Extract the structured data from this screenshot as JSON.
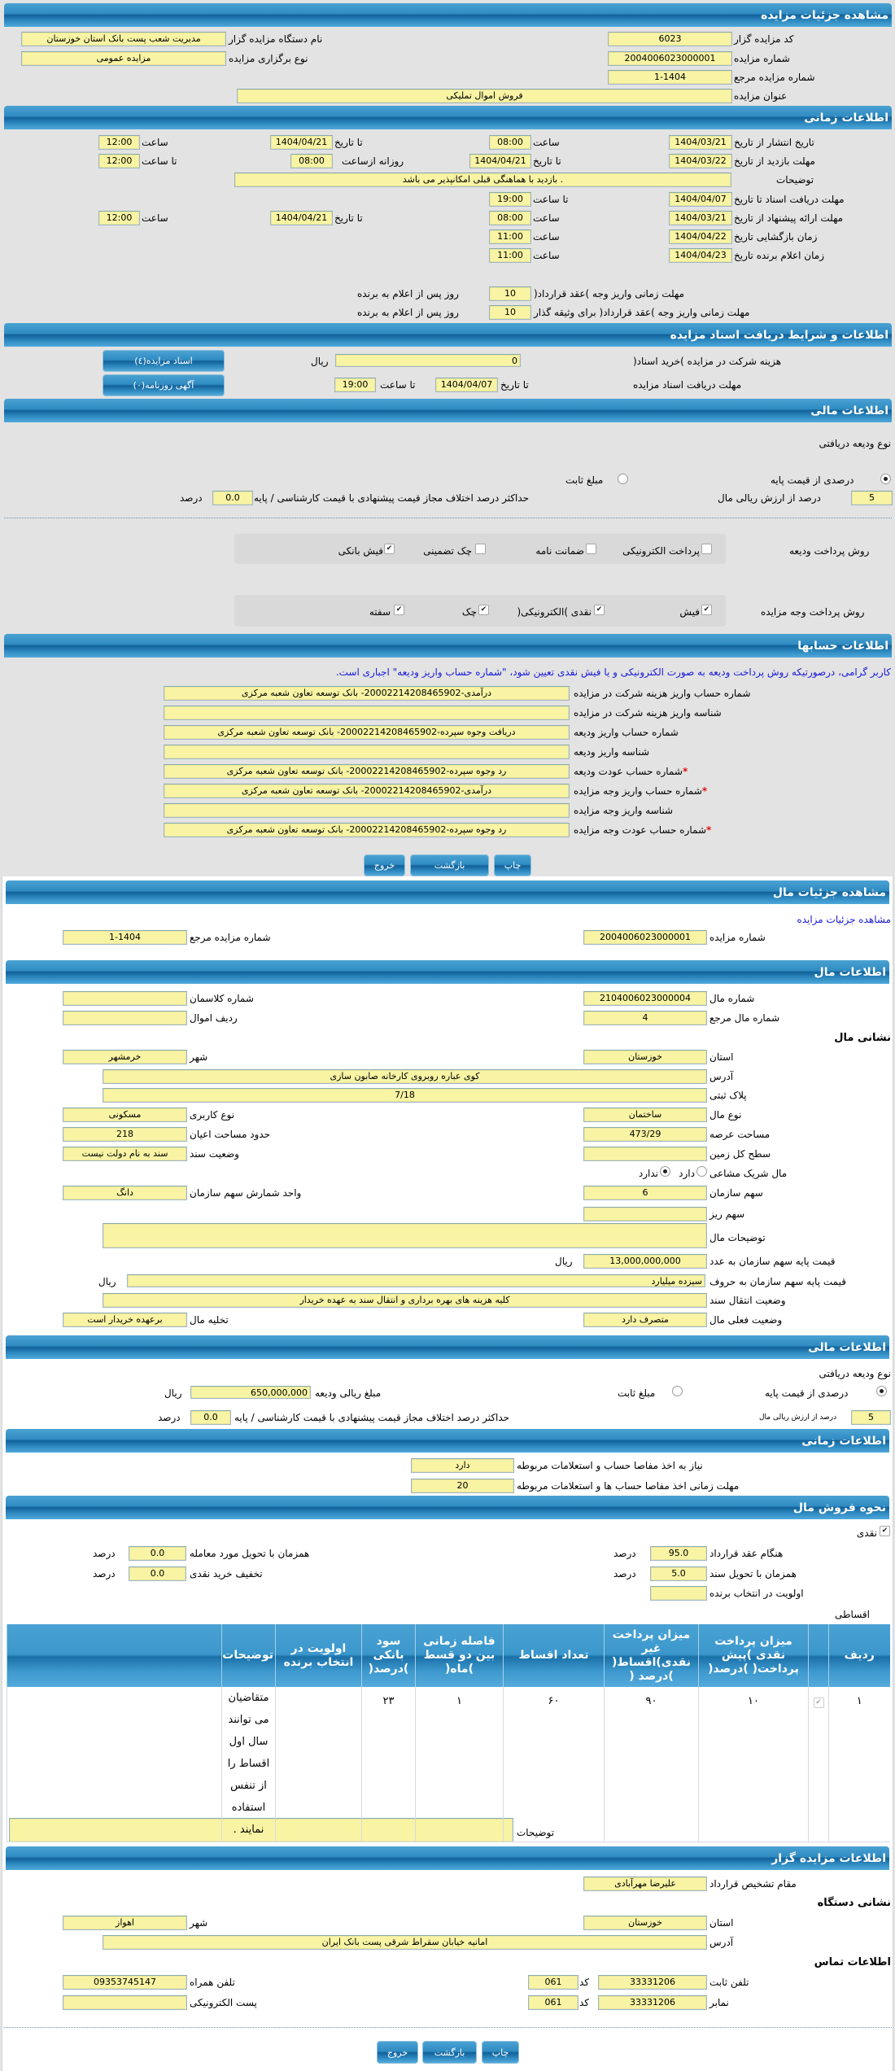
{
  "colors": {
    "header_blue": "#2f8bc1",
    "field_yellow": "#f8f4a4",
    "link_blue": "#1a1ad8",
    "required_red": "#e01010"
  },
  "s1": {
    "title": "مشاهده جزئیات مزایده",
    "code_label": "کد مزایده گزار",
    "code": "6023",
    "org_label": "نام دستگاه مزایده گزار",
    "org": "مدیریت شعب پست بانک استان خوزستان",
    "num_label": "شماره مزایده",
    "num": "2004006023000001",
    "type_label": "نوع برگزاری مزایده",
    "type": "مزایده عمومی",
    "ref_label": "شماره مزایده مرجع",
    "ref": "1-1404",
    "subj_label": "عنوان مزایده",
    "subj": "فروش اموال تملیکی"
  },
  "s2": {
    "title": "اطلاعات زمانی",
    "time": "ساعت",
    "to_date": "تا تاریخ",
    "to_time": "تا ساعت",
    "daily_from": "روزانه ازساعت",
    "desc_label": "توضیحات",
    "desc": ". بازدید با هماهنگی قبلی امکانپذیر می باشد",
    "days_suffix": "روز پس از اعلام به برنده",
    "publish": {
      "label": "تاریخ انتشار  از تاریخ",
      "from_date": "1404/03/21",
      "from_time": "08:00",
      "to_date": "1404/04/21",
      "to_time": "12:00"
    },
    "visit": {
      "label": "مهلت بازدید  از تاریخ",
      "from_date": "1404/03/22",
      "to_date": "1404/04/21",
      "daily_from": "08:00",
      "daily_to": "12:00"
    },
    "docs": {
      "label": "مهلت دریافت اسناد  تا تاریخ",
      "date": "1404/04/07",
      "time": "19:00"
    },
    "offer": {
      "label": "مهلت ارائه پیشنهاد  از تاریخ",
      "from_date": "1404/03/21",
      "from_time": "08:00",
      "to_date": "1404/04/21",
      "to_time": "12:00"
    },
    "opening": {
      "label": "زمان بازگشایی   تاریخ",
      "date": "1404/04/22",
      "time": "11:00"
    },
    "winner": {
      "label": "زمان اعلام برنده   تاریخ",
      "date": "1404/04/23",
      "time": "11:00"
    },
    "pay1": {
      "label": "مهلت زمانی واریز وجه )عقد قرارداد(",
      "days": "10"
    },
    "pay2": {
      "label": "مهلت زمانی واریز وجه )عقد قرارداد( برای وثیقه گذار",
      "days": "10"
    }
  },
  "s3": {
    "title": "اطلاعات و شرایط دریافت اسناد مزایده",
    "fee_label": "هزینه شرکت در مزایده )خرید اسناد(",
    "fee": "0",
    "rial": "ریال",
    "docs_btn": "اسناد مزایده(٤)",
    "deadline_label": "مهلت دریافت اسناد مزایده",
    "to_date_label": "تا تاریخ",
    "date": "1404/04/07",
    "to_time_label": "تا ساعت",
    "time": "19:00",
    "news_btn": "آگهی روزنامه(۰)"
  },
  "s4": {
    "title": "اطلاعات مالی",
    "deposit_type_label": "نوع ودیعه دریافتی",
    "opt_percent": "درصدی از قیمت پایه",
    "opt_percent_selected": true,
    "opt_fixed": "مبلغ ثابت",
    "opt_fixed_selected": false,
    "percent": "5",
    "percent_label": "درصد از ارزش ریالی مال",
    "max_diff_label": "حداکثر درصد اختلاف مجاز قیمت پیشنهادی با قیمت کارشناسی / پایه",
    "max_diff": "0.0",
    "percent_unit": "درصد",
    "deposit_methods_label": "روش پرداخت ودیعه",
    "deposit_methods": [
      {
        "label": "پرداخت الکترونیکی",
        "checked": false
      },
      {
        "label": "ضمانت نامه",
        "checked": false
      },
      {
        "label": "چک تضمینی",
        "checked": false
      },
      {
        "label": "فیش بانکی",
        "checked": true
      }
    ],
    "payment_methods_label": "روش پرداخت وجه مزایده",
    "payment_methods": [
      {
        "label": "فیش",
        "checked": true
      },
      {
        "label": "نقدی )الکترونیکی(",
        "checked": true
      },
      {
        "label": "چک",
        "checked": true
      },
      {
        "label": "سفته",
        "checked": true
      }
    ]
  },
  "s5": {
    "title": "اطلاعات حسابها",
    "notice": "کاربر گرامی، درصورتیکه روش پرداخت ودیعه به صورت الکترونیکی و یا فیش نقدی تعیین شود، \"شماره حساب واریز ودیعه\" اجباری است.",
    "rows": [
      {
        "label": "شماره حساب واریز هزینه شرکت در مزایده",
        "value": "درآمدی-20002214208465902- بانک توسعه تعاون شعبه مرکزی",
        "required": ""
      },
      {
        "label": "شناسه واریز هزینه شرکت در مزایده",
        "value": "",
        "required": ""
      },
      {
        "label": "شماره حساب واریز ودیعه",
        "value": "دریافت وجوه سپرده-20002214208465902- بانک توسعه تعاون شعبه مرکزی",
        "required": ""
      },
      {
        "label": "شناسه واریز ودیعه",
        "value": "",
        "required": ""
      },
      {
        "label": "شماره حساب عودت ودیعه",
        "value": "رد وجوه سپرده-20002214208465902- بانک توسعه تعاون شعبه مرکزی",
        "required": "*"
      },
      {
        "label": "شماره حساب واریز وجه مزایده",
        "value": "درآمدی-20002214208465902- بانک توسعه تعاون شعبه مرکزی",
        "required": "*"
      },
      {
        "label": "شناسه واریز وجه مزایده",
        "value": "",
        "required": ""
      },
      {
        "label": "شماره حساب عودت وجه مزایده",
        "value": "رد وجوه سپرده-20002214208465902- بانک توسعه تعاون شعبه مرکزی",
        "required": "*"
      }
    ]
  },
  "buttons": {
    "print": "چاپ",
    "back": "بازگشت",
    "exit": "خروج"
  },
  "p2": {
    "title": "مشاهده جزئیات مال",
    "link": "مشاهده جزئیات مزایده",
    "num_label": "شماره مزایده",
    "num": "2004006023000001",
    "ref_label": "شماره مزایده مرجع",
    "ref": "1-1404"
  },
  "info": {
    "title": "اطلاعات مال",
    "prop_no_label": "شماره مال",
    "prop_no": "2104006023000004",
    "class_label": "شماره کلاسمان",
    "class_no": "",
    "prop_ref_label": "شماره مال مرجع",
    "prop_ref": "4",
    "row_label": "ردیف اموال",
    "row_no": "",
    "address_heading": "نشانی مال",
    "province_label": "استان",
    "province": "خوزستان",
    "city_label": "شهر",
    "city": "خرمشهر",
    "address_label": "آدرس",
    "address": "کوی عباره روبروی کارخانه صابون سازی",
    "plate_label": "پلاک ثبتی",
    "plate": "7/18",
    "kind_label": "نوع مال",
    "kind": "ساختمان",
    "usage_label": "نوع کاربری",
    "usage": "مسکونی",
    "land_area_label": "مساحت عرصه",
    "land_area": "473/29",
    "building_area_label": "حدود مساحت اعیان",
    "building_area": "218",
    "total_land_label": "سطح کل زمین",
    "total_land": "",
    "deed_label": "وضعیت سند",
    "deed": "سند به نام دولت نیست",
    "shared_label": "مال شریک مشاعی",
    "shared_yes": "دارد",
    "shared_yes_selected": false,
    "shared_no": "ندارد",
    "shared_no_selected": true,
    "share_label": "سهم سازمان",
    "share": "6",
    "share_unit_label": "واحد شمارش سهم سازمان",
    "share_unit": "دانگ",
    "fine_share_label": "سهم ریز",
    "fine_share": "",
    "desc_label": "توضیحات مال",
    "desc": "",
    "price_num_label": "قیمت پایه سهم سازمان به عدد",
    "price_num": "13,000,000,000",
    "rial": "ریال",
    "price_words_label": "قیمت پایه سهم سازمان به حروف",
    "price_words": "سیزده میلیارد",
    "transfer_label": "وضعیت انتقال سند",
    "transfer": "کلیه هزینه های بهره برداری و انتقال سند به عهده خریدار",
    "status_label": "وضعیت فعلی مال",
    "status": "متصرف دارد",
    "evac_label": "تخلیه مال",
    "evac": "برعهده خریدار است"
  },
  "fin2": {
    "title": "اطلاعات مالی",
    "deposit_type_label": "نوع ودیعه دریافتی",
    "opt_percent": "درصدی از قیمت پایه",
    "opt_percent_selected": true,
    "opt_fixed": "مبلغ ثابت",
    "opt_fixed_selected": false,
    "amount_label": "مبلغ ریالی ودیعه",
    "amount": "650,000,000",
    "rial": "ریال",
    "percent": "5",
    "percent_label": "درصد از ارزش ریالی مال",
    "max_diff_label": "حداکثر درصد اختلاف مجاز قیمت پیشنهادی با قیمت کارشناسی / پایه",
    "max_diff": "0.0",
    "percent_unit": "درصد"
  },
  "time2": {
    "title": "اطلاعات زمانی",
    "clearance_label": "نیاز به اخذ مفاصا حساب و استعلامات مربوطه",
    "clearance": "دارد",
    "clearance_days_label": "مهلت زمانی اخذ مفاصا حساب ها و استعلامات مربوطه",
    "clearance_days": "20"
  },
  "sale": {
    "title": "نحوه فروش مال",
    "cash_label": "نقدی",
    "cash_checked": true,
    "percent_unit": "درصد",
    "on_contract_label": "هنگام عقد قرارداد",
    "on_contract": "95.0",
    "on_delivery_label": "همزمان با تحویل مورد معامله",
    "on_delivery": "0.0",
    "on_deed_label": "همزمان با تحویل سند",
    "on_deed": "5.0",
    "discount_label": "تخفیف خرید نقدی",
    "discount": "0.0",
    "priority_label": "اولویت در انتخاب برنده",
    "priority": "",
    "installment_label": "اقساطی",
    "table": {
      "headers": [
        "ردیف",
        "",
        "میزان پرداخت نقدی )پیش پرداخت( )درصد(",
        "میزان پرداخت غیر نقدی)اقساط( )درصد (",
        "تعداد اقساط",
        "فاصله زمانی بین دو قسط )ماه(",
        "سود بانکی )درصد(",
        "اولویت در انتخاب برنده",
        "توضیحات",
        ""
      ],
      "rows": [
        {
          "checked": true,
          "cells": [
            "۱",
            "",
            "۱۰",
            "۹۰",
            "۶۰",
            "۱",
            "۲۳",
            "",
            "متقاضیان می توانند سال اول اقساط را از تنفس استفاده نمایند .",
            ""
          ]
        }
      ]
    },
    "desc_label": "توضیحات",
    "desc": ""
  },
  "org": {
    "title": "اطلاعات مزایده گزار",
    "authority_label": "مقام تشخیص قرارداد",
    "authority": "علیرضا مهرآبادی",
    "address_heading": "نشانی دستگاه",
    "province_label": "استان",
    "province": "خوزستان",
    "city_label": "شهر",
    "city": "اهواز",
    "address_label": "آدرس",
    "address": "امانیه خیابان سقراط شرقی پست بانک ایران",
    "contact_heading": "اطلاعات تماس",
    "phone_label": "تلفن ثابت",
    "phone": "33331206",
    "code_label": "کد",
    "phone_code": "061",
    "mobile_label": "تلفن همراه",
    "mobile": "09353745147",
    "fax_label": "نمابر",
    "fax": "33331206",
    "fax_code": "061",
    "email_label": "پست الکترونیکی",
    "email": ""
  }
}
